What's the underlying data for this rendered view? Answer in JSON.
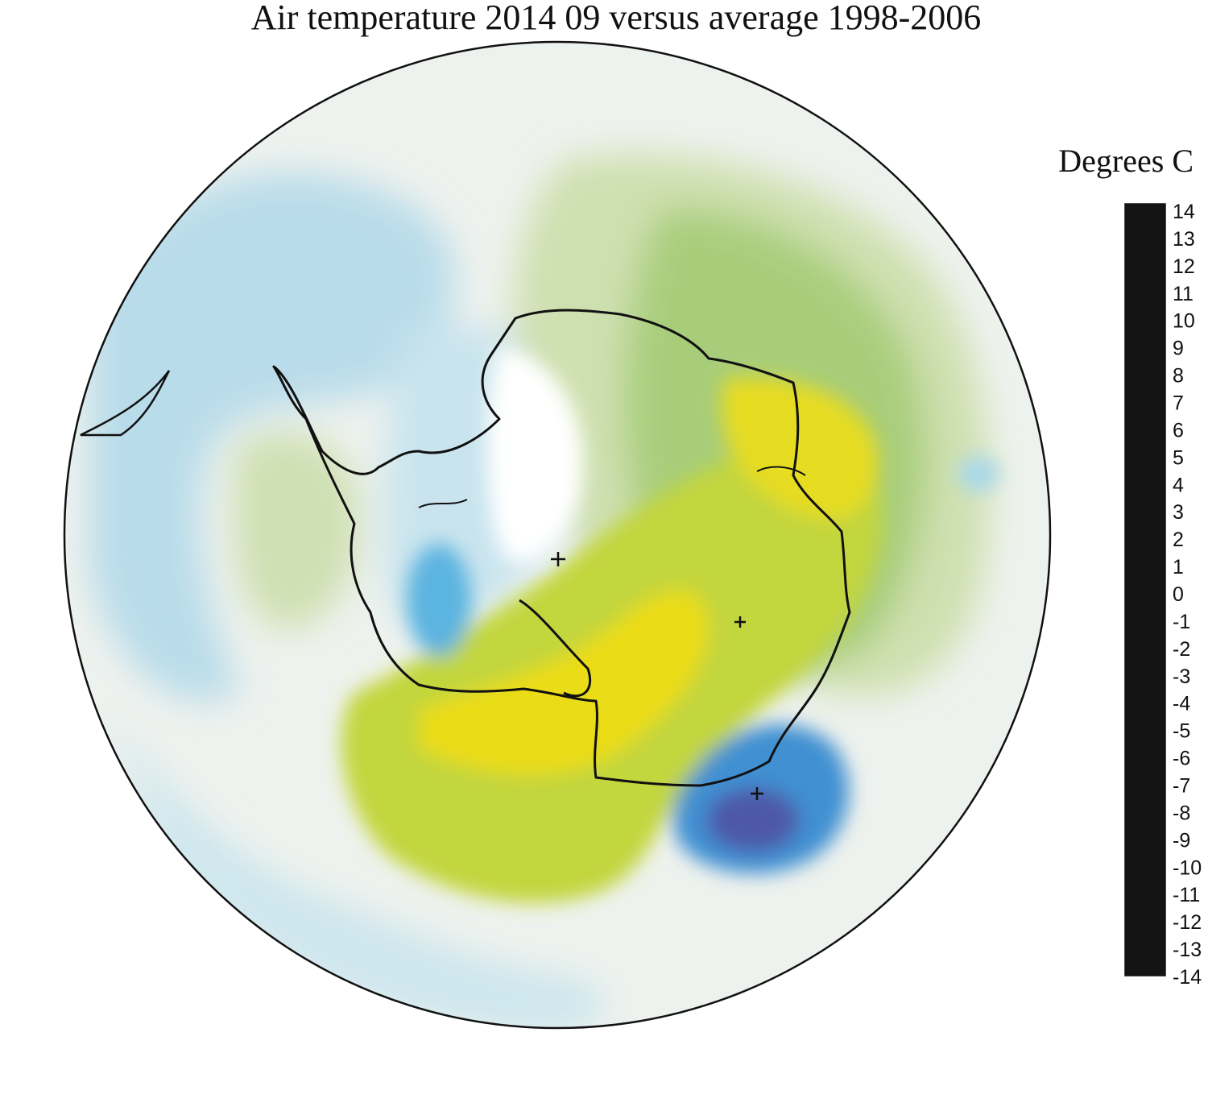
{
  "title": "Air temperature 2014 09 versus average 1998-2006",
  "colorbar": {
    "unit_label": "Degrees C",
    "min": -14,
    "max": 14,
    "ticks": [
      "14",
      "13",
      "12",
      "11",
      "10",
      "9",
      "8",
      "7",
      "6",
      "5",
      "4",
      "3",
      "2",
      "1",
      "0",
      "-1",
      "-2",
      "-3",
      "-4",
      "-5",
      "-6",
      "-7",
      "-8",
      "-9",
      "-10",
      "-11",
      "-12",
      "-13",
      "-14"
    ],
    "stops": [
      {
        "v": -14,
        "c": "#141414"
      },
      {
        "v": -12,
        "c": "#2a1450"
      },
      {
        "v": -10,
        "c": "#3a2a7a"
      },
      {
        "v": -8,
        "c": "#5a4a98"
      },
      {
        "v": -6,
        "c": "#3e56ae"
      },
      {
        "v": -4,
        "c": "#3f78c4"
      },
      {
        "v": -2,
        "c": "#3aa8dc"
      },
      {
        "v": -1,
        "c": "#a7d8e8"
      },
      {
        "v": 0,
        "c": "#ffffff"
      },
      {
        "v": 1,
        "c": "#cfe0b8"
      },
      {
        "v": 2,
        "c": "#92c46a"
      },
      {
        "v": 3,
        "c": "#bdd43e"
      },
      {
        "v": 4,
        "c": "#e2de28"
      },
      {
        "v": 5,
        "c": "#efda10"
      },
      {
        "v": 6,
        "c": "#d8ac2c"
      },
      {
        "v": 7,
        "c": "#d88c30"
      },
      {
        "v": 8,
        "c": "#e07028"
      },
      {
        "v": 10,
        "c": "#e03a30"
      },
      {
        "v": 12,
        "c": "#e83070"
      },
      {
        "v": 14,
        "c": "#c86aa8"
      }
    ]
  },
  "map": {
    "projection": "south-polar-stereographic",
    "background_anomaly": -0.3,
    "anomaly_regions": [
      {
        "name": "drake-passage-weddell",
        "value": -1.2
      },
      {
        "name": "amundsen-bellingshausen",
        "value": 1.3
      },
      {
        "name": "ross-sea-west-antarctica",
        "value": 5
      },
      {
        "name": "east-antarctica-interior",
        "value": 4.5
      },
      {
        "name": "indian-ocean-sector",
        "value": 2.5
      },
      {
        "name": "wilkes-land-coast",
        "value": -8
      },
      {
        "name": "weddell-sea-ice",
        "value": -2
      }
    ],
    "markers": [
      "south-pole-marker",
      "vostok-marker",
      "dome-c-marker"
    ]
  }
}
